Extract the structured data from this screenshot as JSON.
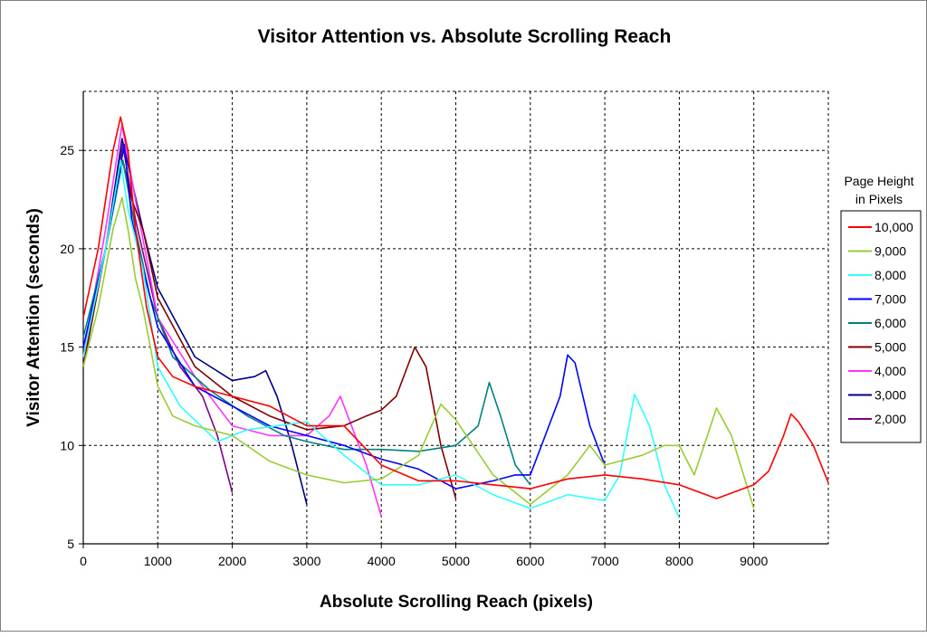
{
  "chart_data": {
    "type": "line",
    "title": "Visitor Attention vs. Absolute Scrolling Reach",
    "xlabel": "Absolute Scrolling Reach (pixels)",
    "ylabel": "Visitor Attention (seconds)",
    "xlim": [
      0,
      10000
    ],
    "ylim": [
      5,
      28
    ],
    "xticks": [
      0,
      1000,
      2000,
      3000,
      4000,
      5000,
      6000,
      7000,
      8000,
      9000
    ],
    "yticks": [
      5,
      10,
      15,
      20,
      25
    ],
    "grid": true,
    "legend": {
      "title_line1": "Page Height",
      "title_line2": "in Pixels",
      "placement": "right"
    },
    "series": [
      {
        "name": "10,000",
        "color": "#ff0000",
        "points": [
          [
            0,
            16.5
          ],
          [
            200,
            20
          ],
          [
            400,
            25
          ],
          [
            500,
            26.7
          ],
          [
            600,
            25
          ],
          [
            700,
            21
          ],
          [
            850,
            17
          ],
          [
            1000,
            14.5
          ],
          [
            1200,
            13.5
          ],
          [
            1500,
            13
          ],
          [
            2000,
            12.5
          ],
          [
            2500,
            12
          ],
          [
            3000,
            11
          ],
          [
            3500,
            11
          ],
          [
            4000,
            9
          ],
          [
            4500,
            8.2
          ],
          [
            5000,
            8.2
          ],
          [
            5500,
            8
          ],
          [
            6000,
            7.8
          ],
          [
            6500,
            8.3
          ],
          [
            7000,
            8.5
          ],
          [
            7500,
            8.3
          ],
          [
            8000,
            8
          ],
          [
            8500,
            7.3
          ],
          [
            9000,
            8
          ],
          [
            9200,
            8.7
          ],
          [
            9400,
            10.5
          ],
          [
            9500,
            11.6
          ],
          [
            9600,
            11.2
          ],
          [
            9800,
            10
          ],
          [
            10000,
            8.1
          ]
        ]
      },
      {
        "name": "9,000",
        "color": "#99cc33",
        "points": [
          [
            0,
            14
          ],
          [
            200,
            17
          ],
          [
            400,
            21
          ],
          [
            520,
            22.6
          ],
          [
            600,
            21
          ],
          [
            700,
            18.5
          ],
          [
            800,
            17
          ],
          [
            900,
            15
          ],
          [
            1000,
            13
          ],
          [
            1200,
            11.5
          ],
          [
            1500,
            11
          ],
          [
            2000,
            10.5
          ],
          [
            2500,
            9.2
          ],
          [
            3000,
            8.5
          ],
          [
            3500,
            8.1
          ],
          [
            4000,
            8.3
          ],
          [
            4500,
            9.5
          ],
          [
            4800,
            12.1
          ],
          [
            5000,
            11.3
          ],
          [
            5500,
            8.5
          ],
          [
            6000,
            7
          ],
          [
            6500,
            8.5
          ],
          [
            6800,
            10
          ],
          [
            7000,
            9
          ],
          [
            7500,
            9.5
          ],
          [
            7800,
            10
          ],
          [
            8000,
            10
          ],
          [
            8200,
            8.5
          ],
          [
            8500,
            11.9
          ],
          [
            8700,
            10.5
          ],
          [
            9000,
            6.8
          ]
        ]
      },
      {
        "name": "8,000",
        "color": "#33ffff",
        "points": [
          [
            0,
            14.5
          ],
          [
            300,
            20
          ],
          [
            500,
            24.5
          ],
          [
            600,
            22
          ],
          [
            800,
            19
          ],
          [
            1000,
            14
          ],
          [
            1300,
            12
          ],
          [
            1800,
            10.2
          ],
          [
            2200,
            10.8
          ],
          [
            3000,
            11.2
          ],
          [
            3500,
            9.5
          ],
          [
            4000,
            8
          ],
          [
            4500,
            8
          ],
          [
            5000,
            8.5
          ],
          [
            5500,
            7.5
          ],
          [
            6000,
            6.8
          ],
          [
            6500,
            7.5
          ],
          [
            7000,
            7.2
          ],
          [
            7200,
            8.5
          ],
          [
            7400,
            12.6
          ],
          [
            7600,
            11
          ],
          [
            7800,
            8
          ],
          [
            8000,
            6.3
          ]
        ]
      },
      {
        "name": "7,000",
        "color": "#0000ff",
        "points": [
          [
            0,
            15
          ],
          [
            300,
            20
          ],
          [
            550,
            25.3
          ],
          [
            650,
            21.5
          ],
          [
            800,
            19
          ],
          [
            1000,
            16
          ],
          [
            1500,
            13
          ],
          [
            2000,
            12
          ],
          [
            2500,
            11
          ],
          [
            3000,
            10.5
          ],
          [
            3500,
            10
          ],
          [
            4000,
            9.3
          ],
          [
            4500,
            8.8
          ],
          [
            5000,
            7.8
          ],
          [
            5500,
            8.2
          ],
          [
            5800,
            8.5
          ],
          [
            6000,
            8.5
          ],
          [
            6200,
            10.5
          ],
          [
            6400,
            12.5
          ],
          [
            6500,
            14.6
          ],
          [
            6600,
            14.2
          ],
          [
            6800,
            11
          ],
          [
            7000,
            9
          ]
        ]
      },
      {
        "name": "6,000",
        "color": "#008080",
        "points": [
          [
            0,
            15.5
          ],
          [
            300,
            20
          ],
          [
            530,
            24.5
          ],
          [
            700,
            21
          ],
          [
            900,
            17.5
          ],
          [
            1200,
            14.5
          ],
          [
            1700,
            12.8
          ],
          [
            2200,
            11.5
          ],
          [
            2700,
            10.5
          ],
          [
            3000,
            10.2
          ],
          [
            3500,
            9.8
          ],
          [
            4000,
            9.8
          ],
          [
            4500,
            9.7
          ],
          [
            5000,
            10
          ],
          [
            5300,
            11
          ],
          [
            5450,
            13.2
          ],
          [
            5600,
            11.5
          ],
          [
            5800,
            9
          ],
          [
            6000,
            8
          ]
        ]
      },
      {
        "name": "5,000",
        "color": "#800000",
        "points": [
          [
            0,
            14
          ],
          [
            300,
            20
          ],
          [
            530,
            24.5
          ],
          [
            650,
            22.5
          ],
          [
            800,
            21
          ],
          [
            1000,
            17.5
          ],
          [
            1500,
            14
          ],
          [
            2000,
            12.5
          ],
          [
            2500,
            11.5
          ],
          [
            3000,
            10.8
          ],
          [
            3500,
            11
          ],
          [
            3800,
            11.5
          ],
          [
            4000,
            11.8
          ],
          [
            4200,
            12.5
          ],
          [
            4450,
            15
          ],
          [
            4600,
            14
          ],
          [
            4800,
            10
          ],
          [
            5000,
            7.3
          ]
        ]
      },
      {
        "name": "4,000",
        "color": "#ff33ff",
        "points": [
          [
            0,
            14.5
          ],
          [
            300,
            21
          ],
          [
            520,
            26.3
          ],
          [
            700,
            22.5
          ],
          [
            1000,
            16.5
          ],
          [
            1500,
            13.5
          ],
          [
            2000,
            11
          ],
          [
            2500,
            10.5
          ],
          [
            3000,
            10.5
          ],
          [
            3300,
            11.5
          ],
          [
            3450,
            12.5
          ],
          [
            3600,
            11
          ],
          [
            3800,
            9
          ],
          [
            4000,
            6.4
          ]
        ]
      },
      {
        "name": "3,000",
        "color": "#000080",
        "points": [
          [
            0,
            14.5
          ],
          [
            300,
            20
          ],
          [
            520,
            25.6
          ],
          [
            800,
            21
          ],
          [
            1000,
            18
          ],
          [
            1500,
            14.5
          ],
          [
            2000,
            13.3
          ],
          [
            2300,
            13.5
          ],
          [
            2450,
            13.8
          ],
          [
            2600,
            12.5
          ],
          [
            2800,
            10
          ],
          [
            3000,
            7
          ]
        ]
      },
      {
        "name": "2,000",
        "color": "#800080",
        "points": [
          [
            0,
            14
          ],
          [
            300,
            20
          ],
          [
            530,
            25.3
          ],
          [
            700,
            21.5
          ],
          [
            1000,
            16.5
          ],
          [
            1300,
            14
          ],
          [
            1600,
            12.5
          ],
          [
            1800,
            10.5
          ],
          [
            2000,
            7.6
          ]
        ]
      }
    ]
  }
}
